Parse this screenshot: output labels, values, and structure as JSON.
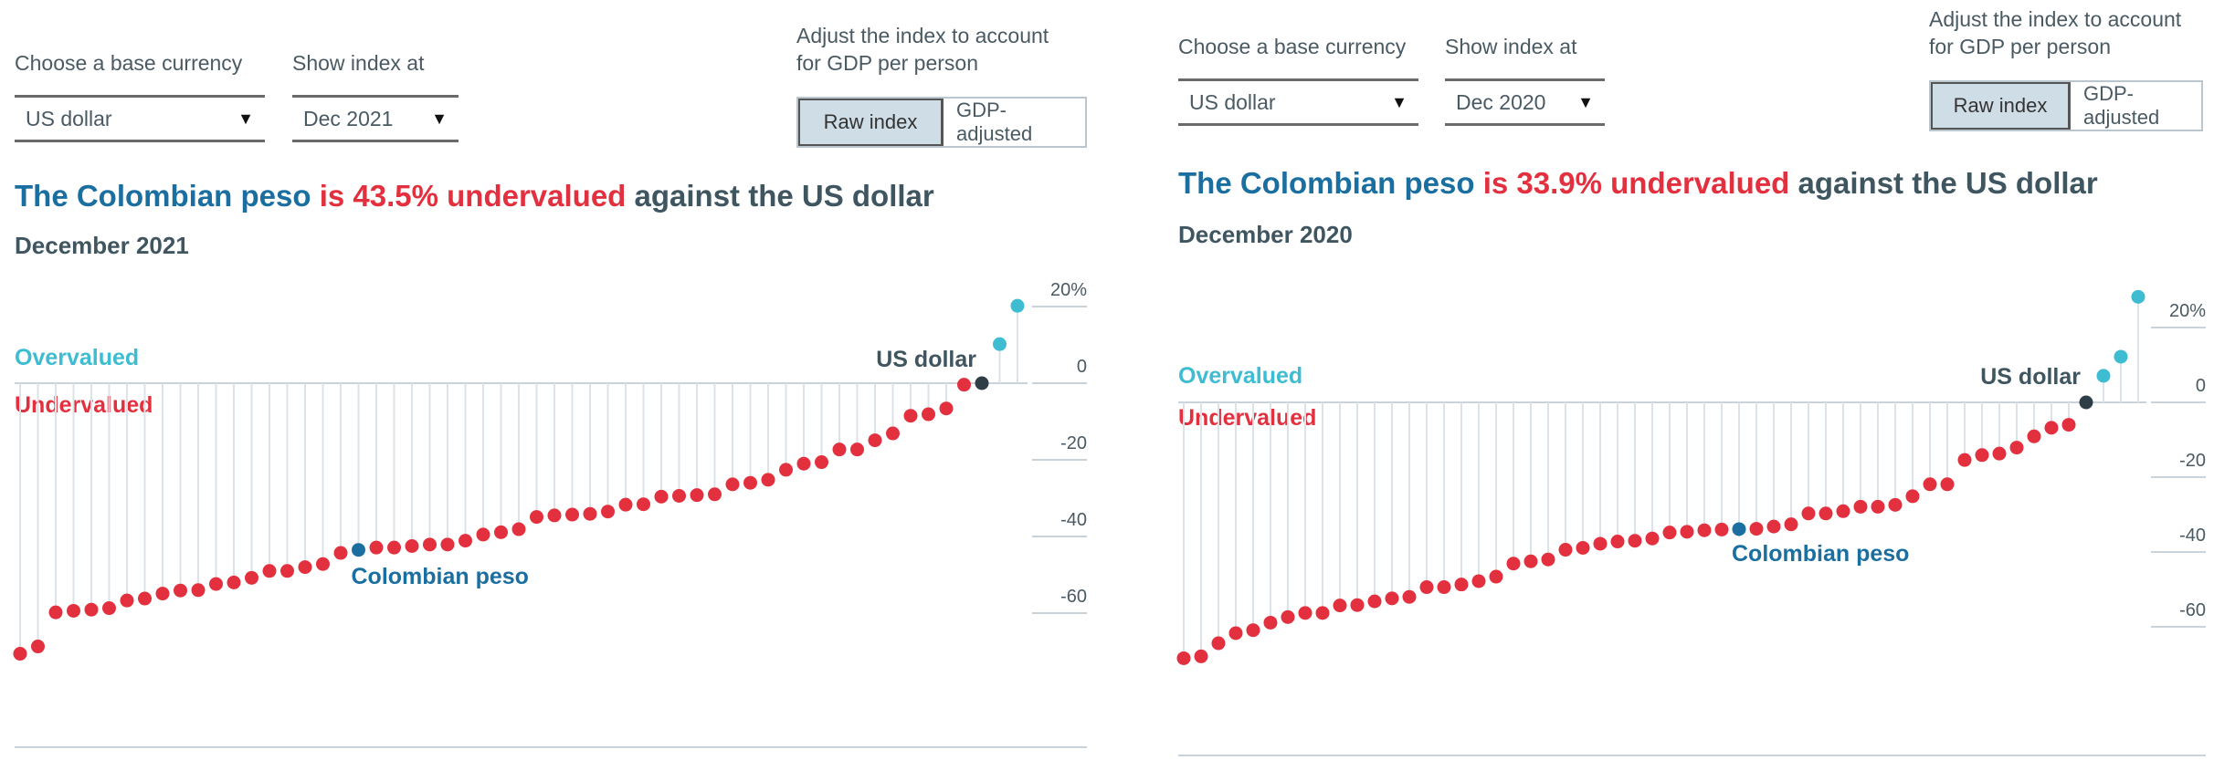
{
  "colors": {
    "undervalued": "#e3303f",
    "overvalued": "#3ebcd2",
    "highlight": "#1a6fa0",
    "base": "#2f3e46",
    "stem": "#dbe3e8",
    "axis": "#c9d3d9"
  },
  "panels": [
    {
      "controls": {
        "currency_label": "Choose a base currency",
        "currency_value": "US dollar",
        "date_label": "Show index at",
        "date_value": "Dec 2021",
        "adjust_label_line1": "Adjust the index to account",
        "adjust_label_line2": "for GDP per person",
        "toggle_raw": "Raw index",
        "toggle_gdp": "GDP-adjusted",
        "toggle_selected": "Raw index"
      },
      "title": {
        "part1": "The Colombian peso",
        "part2": " is 43.5% undervalued",
        "part3": " against the US dollar"
      },
      "subtitle": "December 2021"
    },
    {
      "controls": {
        "currency_label": "Choose a base currency",
        "currency_value": "US dollar",
        "date_label": "Show index at",
        "date_value": "Dec 2020",
        "adjust_label_line1": "Adjust the index to account",
        "adjust_label_line2": "for GDP per person",
        "toggle_raw": "Raw index",
        "toggle_gdp": "GDP-adjusted",
        "toggle_selected": "Raw index"
      },
      "title": {
        "part1": "The Colombian peso",
        "part2": " is 33.9% undervalued",
        "part3": " against the US dollar"
      },
      "subtitle": "December 2020"
    }
  ],
  "chart_data": [
    {
      "type": "scatter",
      "title": "The Colombian peso is 43.5% undervalued against the US dollar",
      "subtitle": "December 2021",
      "ylim": [
        -70,
        25
      ],
      "yticks": [
        20,
        0,
        -20,
        -40,
        -60
      ],
      "ytick_labels": [
        "20%",
        "0",
        "-20",
        "-40",
        "-60"
      ],
      "grid": false,
      "region_labels": {
        "above": "Overvalued",
        "below": "Undervalued"
      },
      "annotations": {
        "highlight": "Colombian peso",
        "base": "US dollar"
      },
      "highlight_index": 19,
      "base_index": 54,
      "values": [
        -70.6,
        -68.7,
        -59.8,
        -59.4,
        -59.1,
        -58.7,
        -56.7,
        -56.2,
        -54.9,
        -54.1,
        -54.0,
        -52.4,
        -52.0,
        -50.8,
        -49.0,
        -49.0,
        -48.0,
        -47.2,
        -44.3,
        -43.5,
        -42.9,
        -42.9,
        -42.5,
        -42.1,
        -42.1,
        -41.1,
        -39.5,
        -38.9,
        -38.1,
        -34.9,
        -34.5,
        -34.3,
        -34.1,
        -33.5,
        -31.7,
        -31.6,
        -29.6,
        -29.4,
        -29.2,
        -29.0,
        -26.4,
        -26.0,
        -25.2,
        -22.6,
        -21.0,
        -20.6,
        -17.3,
        -17.3,
        -14.9,
        -13.1,
        -8.5,
        -8.1,
        -6.6,
        -0.4,
        0,
        10.2,
        20.2
      ]
    },
    {
      "type": "scatter",
      "title": "The Colombian peso is 33.9% undervalued against the US dollar",
      "subtitle": "December 2020",
      "ylim": [
        -70,
        30
      ],
      "yticks": [
        20,
        0,
        -20,
        -40,
        -60
      ],
      "ytick_labels": [
        "20%",
        "0",
        "-20",
        "-40",
        "-60"
      ],
      "grid": false,
      "region_labels": {
        "above": "Overvalued",
        "below": "Undervalued"
      },
      "annotations": {
        "highlight": "Colombian peso",
        "base": "US dollar"
      },
      "highlight_index": 32,
      "base_index": 52,
      "values": [
        -68.4,
        -67.9,
        -64.4,
        -61.7,
        -60.9,
        -58.9,
        -57.4,
        -56.3,
        -56.3,
        -54.3,
        -54.2,
        -53.2,
        -52.4,
        -52.0,
        -49.4,
        -49.4,
        -48.7,
        -47.8,
        -46.6,
        -43.1,
        -42.5,
        -42.0,
        -39.4,
        -38.9,
        -37.8,
        -37.2,
        -37.0,
        -36.4,
        -34.8,
        -34.6,
        -34.2,
        -34.0,
        -33.9,
        -33.8,
        -33.2,
        -32.6,
        -29.7,
        -29.7,
        -29.1,
        -27.9,
        -27.9,
        -27.4,
        -25.1,
        -21.9,
        -21.9,
        -15.4,
        -14.1,
        -13.7,
        -12.1,
        -9.1,
        -6.8,
        -6.0,
        0,
        7.1,
        12.2,
        28.2
      ]
    }
  ]
}
